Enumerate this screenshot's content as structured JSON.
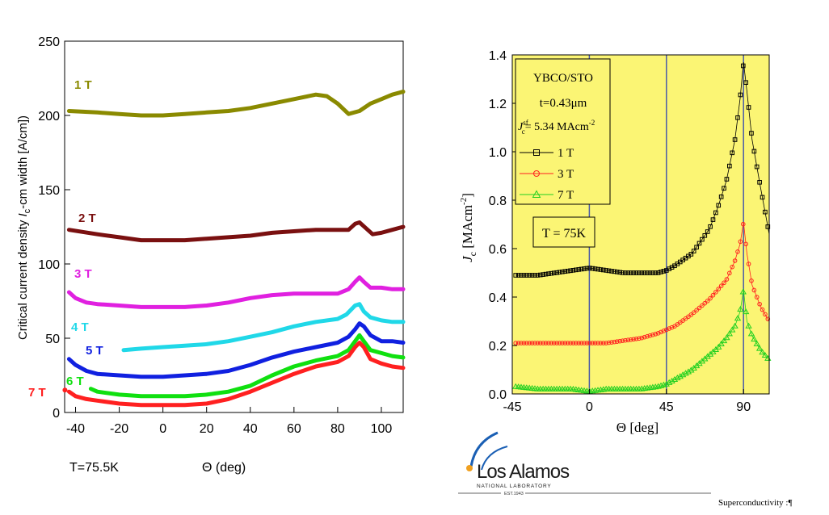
{
  "chart_data": [
    {
      "type": "line",
      "ylabel_pre": "Critical current density ",
      "ylabel_sym": "I",
      "ylabel_sub": "c",
      "ylabel_post": "-cm width [A/cm])",
      "xlabel": "Θ (deg)",
      "xlim": [
        -45,
        110
      ],
      "ylim": [
        0,
        250
      ],
      "xticks": [
        -40,
        -20,
        0,
        20,
        40,
        60,
        80,
        100
      ],
      "yticks": [
        0,
        50,
        100,
        150,
        200,
        250
      ],
      "grid": false,
      "annotation": "T=75.5K",
      "series": [
        {
          "name": "1 T",
          "color": "#8a8a00",
          "x": [
            -43,
            -30,
            -20,
            -10,
            0,
            10,
            20,
            30,
            40,
            50,
            60,
            70,
            75,
            80,
            85,
            90,
            95,
            100,
            105,
            110
          ],
          "y": [
            203,
            202,
            201,
            200,
            200,
            201,
            202,
            203,
            205,
            208,
            211,
            214,
            213,
            208,
            201,
            203,
            208,
            211,
            214,
            216
          ]
        },
        {
          "name": "2 T",
          "color": "#7a1010",
          "x": [
            -43,
            -30,
            -20,
            -10,
            0,
            10,
            20,
            30,
            40,
            50,
            60,
            70,
            80,
            85,
            88,
            90,
            93,
            96,
            100,
            105,
            110
          ],
          "y": [
            123,
            120,
            118,
            116,
            116,
            116,
            117,
            118,
            119,
            121,
            122,
            123,
            123,
            123,
            127,
            128,
            124,
            120,
            121,
            123,
            125
          ]
        },
        {
          "name": "3 T",
          "color": "#e020e0",
          "x": [
            -43,
            -40,
            -35,
            -30,
            -20,
            -10,
            0,
            10,
            20,
            30,
            40,
            50,
            60,
            70,
            80,
            85,
            88,
            90,
            92,
            95,
            100,
            105,
            110
          ],
          "y": [
            81,
            77,
            74,
            73,
            72,
            71,
            71,
            71,
            72,
            74,
            77,
            79,
            80,
            80,
            80,
            83,
            88,
            91,
            88,
            84,
            84,
            83,
            83
          ]
        },
        {
          "name": "4 T",
          "color": "#20d8e8",
          "x": [
            -18,
            -10,
            0,
            10,
            20,
            30,
            40,
            50,
            60,
            70,
            80,
            84,
            88,
            90,
            92,
            95,
            100,
            105,
            110
          ],
          "y": [
            42,
            43,
            44,
            45,
            46,
            48,
            51,
            54,
            58,
            61,
            63,
            66,
            72,
            73,
            68,
            64,
            62,
            61,
            61
          ]
        },
        {
          "name": "5 T",
          "color": "#1020e0",
          "x": [
            -43,
            -40,
            -35,
            -30,
            -20,
            -10,
            0,
            10,
            20,
            30,
            40,
            50,
            60,
            70,
            80,
            85,
            88,
            90,
            92,
            95,
            100,
            105,
            110
          ],
          "y": [
            36,
            32,
            28,
            26,
            25,
            24,
            24,
            25,
            26,
            28,
            32,
            37,
            41,
            44,
            47,
            51,
            56,
            60,
            58,
            52,
            48,
            48,
            47
          ]
        },
        {
          "name": "6 T",
          "color": "#10e010",
          "x": [
            -33,
            -30,
            -20,
            -10,
            0,
            10,
            20,
            30,
            40,
            50,
            60,
            70,
            80,
            85,
            88,
            90,
            92,
            95,
            100,
            105,
            110
          ],
          "y": [
            16,
            14,
            12,
            11,
            11,
            11,
            12,
            14,
            18,
            25,
            31,
            35,
            38,
            42,
            48,
            52,
            48,
            42,
            40,
            38,
            37
          ]
        },
        {
          "name": "7 T",
          "color": "#ff2020",
          "x": [
            -43,
            -40,
            -35,
            -30,
            -20,
            -10,
            0,
            10,
            20,
            30,
            40,
            50,
            60,
            70,
            80,
            85,
            88,
            90,
            92,
            95,
            100,
            105,
            110
          ],
          "y": [
            14,
            11,
            9,
            8,
            6,
            5,
            5,
            5,
            6,
            9,
            14,
            20,
            26,
            31,
            34,
            38,
            44,
            47,
            44,
            36,
            33,
            31,
            30
          ]
        }
      ]
    },
    {
      "type": "scatter",
      "ylabel_sym": "J",
      "ylabel_sub": "c",
      "ylabel_unit": " [MAcm",
      "ylabel_sup": "-2",
      "ylabel_close": "]",
      "xlabel": "Θ [deg]",
      "xlim": [
        -45,
        105
      ],
      "ylim": [
        0.0,
        1.4
      ],
      "xticks": [
        -45,
        0,
        45,
        90
      ],
      "ytick_labels": [
        "0.0",
        "0.2",
        "0.4",
        "0.6",
        "0.8",
        "1.0",
        "1.2",
        "1.4"
      ],
      "yticks": [
        0.0,
        0.2,
        0.4,
        0.6,
        0.8,
        1.0,
        1.2,
        1.4
      ],
      "vlines": [
        0,
        45,
        90
      ],
      "background": "#fbf574",
      "legend": {
        "line1": "YBCO/STO",
        "line2": "t=0.43μm",
        "line3_sym": "J",
        "line3_sub": "c",
        "line3_sup": "sf",
        "line3_post": "= 5.34 MAcm",
        "line3_sup2": "-2",
        "placement": "top-left"
      },
      "temp_box": "T = 75K",
      "series": [
        {
          "name": "1 T",
          "color": "#000000",
          "marker": "square",
          "x": [
            -43,
            -30,
            -20,
            -10,
            0,
            10,
            20,
            30,
            40,
            45,
            50,
            60,
            70,
            75,
            80,
            85,
            88,
            90,
            92,
            95,
            100,
            105
          ],
          "y": [
            0.49,
            0.49,
            0.5,
            0.51,
            0.52,
            0.51,
            0.5,
            0.5,
            0.5,
            0.51,
            0.53,
            0.58,
            0.68,
            0.77,
            0.88,
            1.05,
            1.22,
            1.37,
            1.25,
            1.05,
            0.85,
            0.66
          ]
        },
        {
          "name": "3 T",
          "color": "#ff2020",
          "marker": "circle",
          "x": [
            -43,
            -30,
            -20,
            -10,
            0,
            10,
            20,
            30,
            40,
            50,
            60,
            70,
            75,
            80,
            85,
            88,
            90,
            92,
            95,
            100,
            105
          ],
          "y": [
            0.21,
            0.21,
            0.21,
            0.21,
            0.21,
            0.21,
            0.22,
            0.23,
            0.25,
            0.28,
            0.33,
            0.39,
            0.43,
            0.47,
            0.55,
            0.62,
            0.71,
            0.58,
            0.45,
            0.36,
            0.3
          ]
        },
        {
          "name": "7 T",
          "color": "#20d020",
          "marker": "triangle",
          "x": [
            -43,
            -30,
            -20,
            -10,
            0,
            10,
            20,
            30,
            40,
            45,
            50,
            60,
            70,
            75,
            80,
            85,
            88,
            90,
            92,
            95,
            100,
            105
          ],
          "y": [
            0.03,
            0.02,
            0.02,
            0.02,
            0.01,
            0.02,
            0.02,
            0.02,
            0.03,
            0.04,
            0.06,
            0.1,
            0.16,
            0.19,
            0.23,
            0.28,
            0.34,
            0.43,
            0.3,
            0.24,
            0.18,
            0.14
          ]
        }
      ]
    }
  ],
  "logo": {
    "name": "Los Alamos",
    "subtitle": "NATIONAL LABORATORY",
    "est": "EST.1943"
  },
  "footer": "Superconductivity :¶"
}
